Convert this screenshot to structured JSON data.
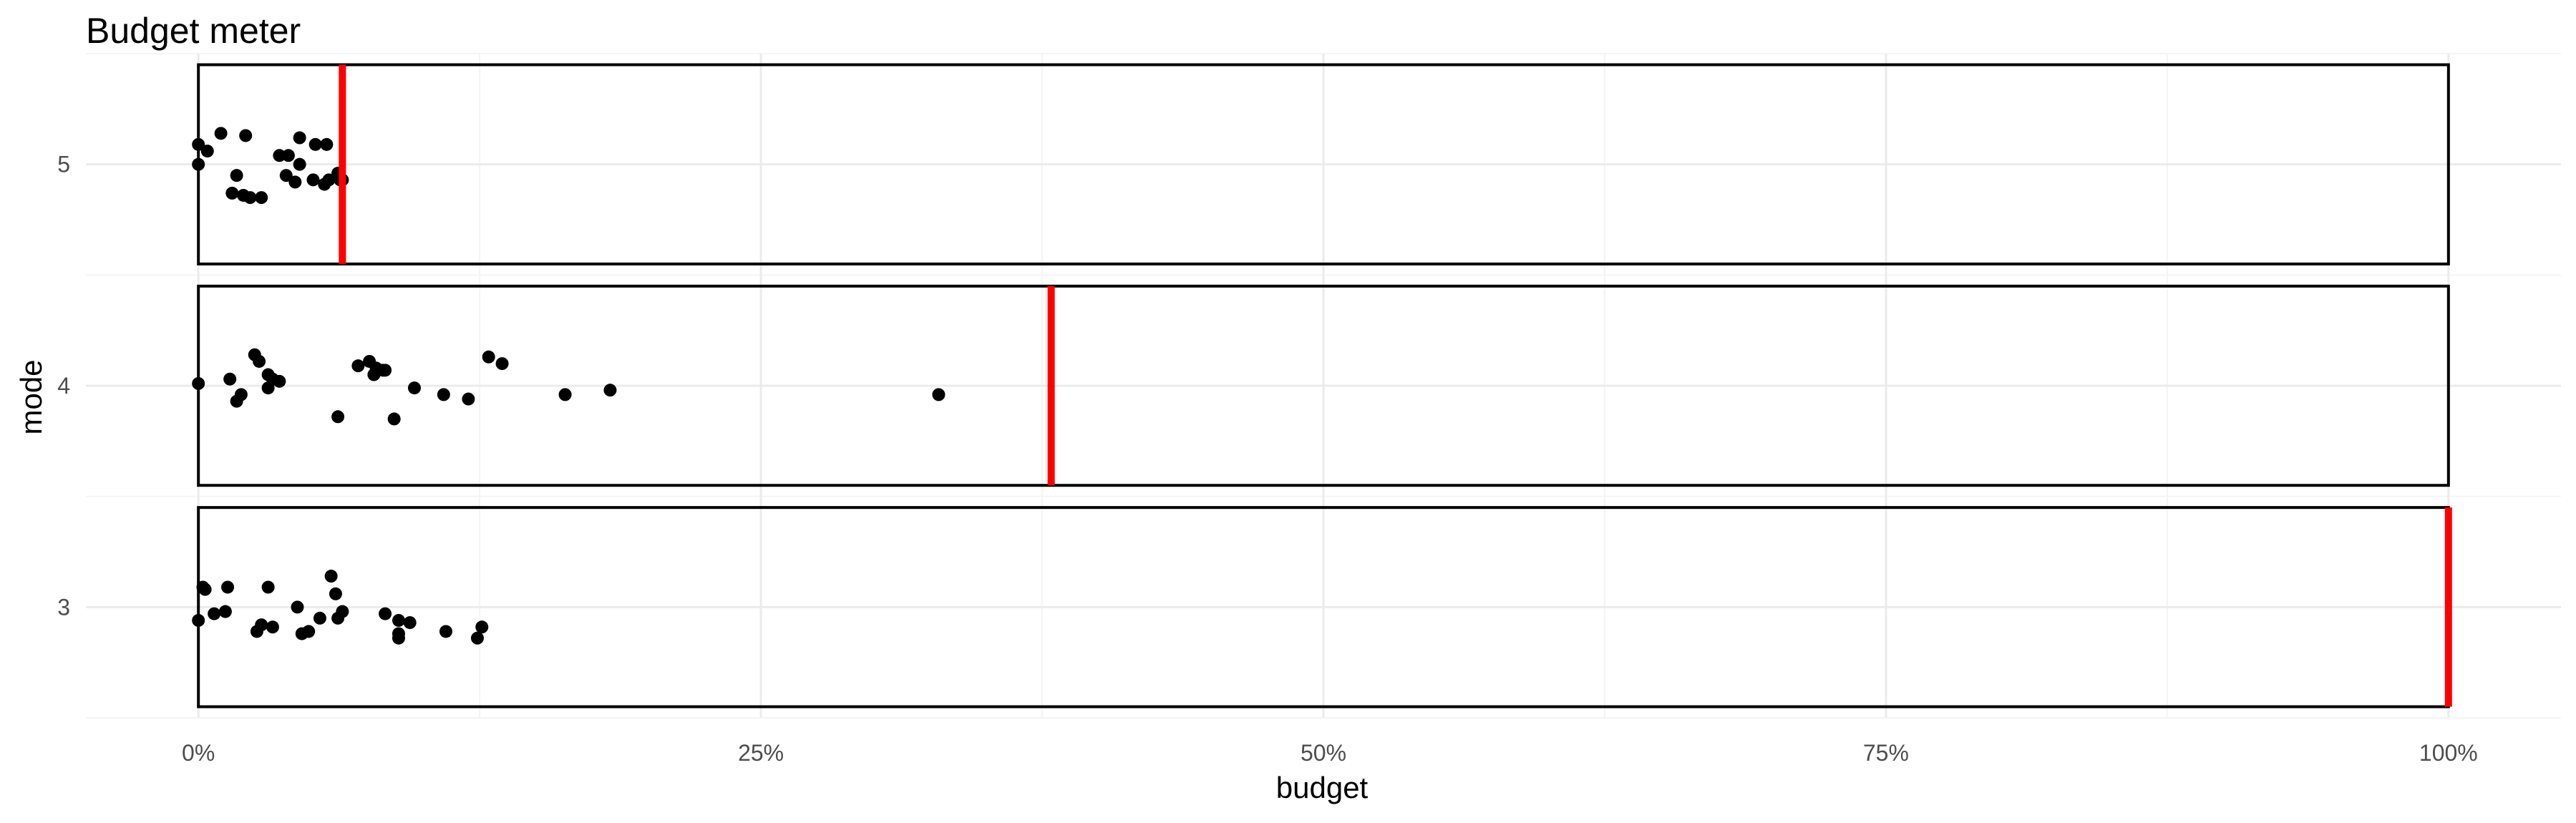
{
  "chart_data": {
    "type": "scatter",
    "title": "Budget meter",
    "xlabel": "budget",
    "ylabel": "mode",
    "x_unit": "percent",
    "xlim": [
      -5,
      105
    ],
    "ylim": [
      2.5,
      5.5
    ],
    "x_ticks": [
      {
        "value": 0,
        "label": "0%"
      },
      {
        "value": 25,
        "label": "25%"
      },
      {
        "value": 50,
        "label": "50%"
      },
      {
        "value": 75,
        "label": "75%"
      },
      {
        "value": 100,
        "label": "100%"
      }
    ],
    "y_ticks": [
      {
        "value": 3,
        "label": "3"
      },
      {
        "value": 4,
        "label": "4"
      },
      {
        "value": 5,
        "label": "5"
      }
    ],
    "grid": true,
    "legend": "none",
    "colors": {
      "points": "#000000",
      "meter": "#ff0000",
      "box": "#000000",
      "grid_major": "#ebebeb",
      "grid_minor": "#f4f4f4"
    },
    "panels": [
      {
        "mode": 5,
        "meter_value": 6.4,
        "points": [
          [
            0.0,
            5.09
          ],
          [
            0.0,
            5.0
          ],
          [
            0.4,
            5.06
          ],
          [
            1.0,
            5.14
          ],
          [
            1.5,
            4.87
          ],
          [
            1.7,
            4.95
          ],
          [
            2.0,
            4.86
          ],
          [
            2.1,
            5.13
          ],
          [
            2.3,
            4.85
          ],
          [
            2.8,
            4.85
          ],
          [
            3.6,
            5.04
          ],
          [
            3.9,
            4.95
          ],
          [
            4.0,
            5.04
          ],
          [
            4.3,
            4.92
          ],
          [
            4.5,
            5.0
          ],
          [
            4.5,
            5.12
          ],
          [
            5.1,
            4.93
          ],
          [
            5.2,
            5.09
          ],
          [
            5.6,
            4.91
          ],
          [
            5.7,
            5.09
          ],
          [
            5.8,
            4.93
          ],
          [
            6.2,
            4.96
          ],
          [
            6.3,
            4.93
          ],
          [
            6.4,
            4.93
          ]
        ]
      },
      {
        "mode": 4,
        "meter_value": 37.9,
        "points": [
          [
            0.0,
            4.01
          ],
          [
            1.4,
            4.03
          ],
          [
            1.7,
            3.93
          ],
          [
            1.9,
            3.96
          ],
          [
            2.5,
            4.14
          ],
          [
            2.7,
            4.11
          ],
          [
            3.1,
            4.05
          ],
          [
            3.1,
            3.99
          ],
          [
            3.3,
            4.03
          ],
          [
            3.6,
            4.02
          ],
          [
            6.2,
            3.86
          ],
          [
            7.1,
            4.09
          ],
          [
            7.6,
            4.11
          ],
          [
            7.8,
            4.05
          ],
          [
            7.9,
            4.08
          ],
          [
            8.2,
            4.07
          ],
          [
            8.3,
            4.07
          ],
          [
            8.7,
            3.85
          ],
          [
            9.6,
            3.99
          ],
          [
            10.9,
            3.96
          ],
          [
            12.0,
            3.94
          ],
          [
            12.9,
            4.13
          ],
          [
            13.5,
            4.1
          ],
          [
            16.3,
            3.96
          ],
          [
            18.3,
            3.98
          ],
          [
            32.9,
            3.96
          ]
        ]
      },
      {
        "mode": 3,
        "meter_value": 100,
        "points": [
          [
            0.0,
            2.94
          ],
          [
            0.2,
            3.09
          ],
          [
            0.3,
            3.08
          ],
          [
            0.7,
            2.97
          ],
          [
            1.2,
            2.98
          ],
          [
            1.3,
            3.09
          ],
          [
            2.6,
            2.89
          ],
          [
            2.8,
            2.92
          ],
          [
            3.1,
            3.09
          ],
          [
            3.3,
            2.91
          ],
          [
            4.4,
            3.0
          ],
          [
            4.6,
            2.88
          ],
          [
            4.9,
            2.89
          ],
          [
            5.4,
            2.95
          ],
          [
            5.9,
            3.14
          ],
          [
            6.1,
            3.06
          ],
          [
            6.2,
            2.95
          ],
          [
            6.4,
            2.98
          ],
          [
            8.3,
            2.97
          ],
          [
            8.9,
            2.94
          ],
          [
            8.9,
            2.88
          ],
          [
            8.9,
            2.86
          ],
          [
            9.4,
            2.93
          ],
          [
            11.0,
            2.89
          ],
          [
            12.4,
            2.86
          ],
          [
            12.6,
            2.91
          ]
        ]
      }
    ]
  }
}
